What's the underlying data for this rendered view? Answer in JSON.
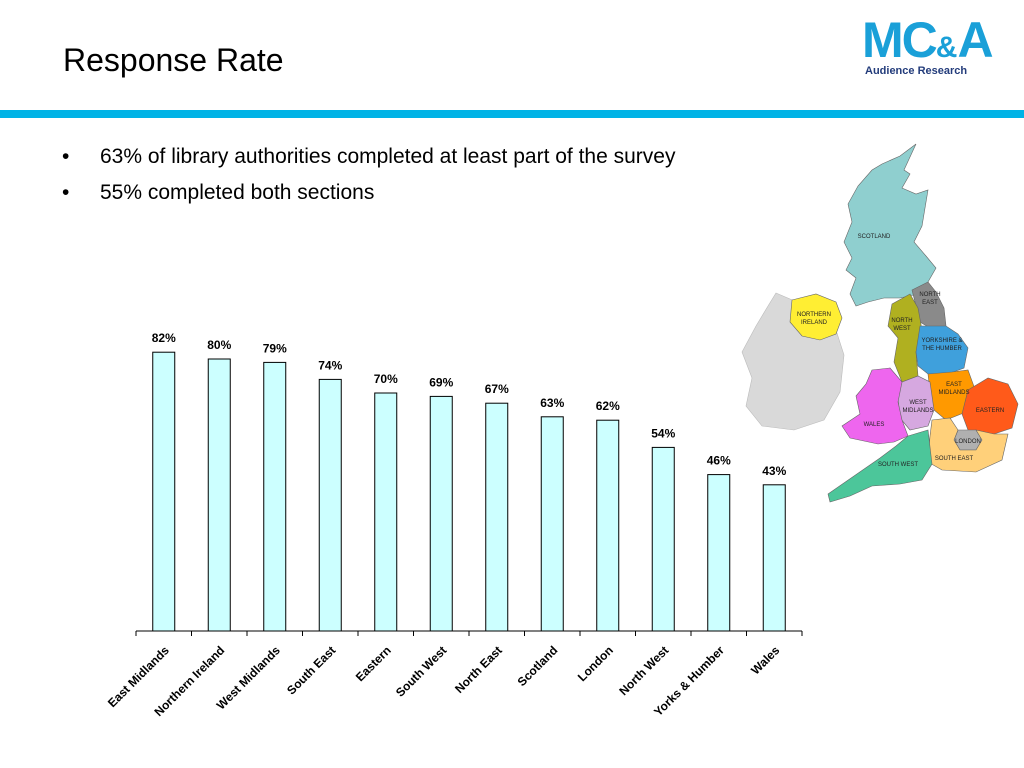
{
  "slide": {
    "title": "Response Rate",
    "bullets": [
      "63% of library authorities completed at least part of the survey",
      "55% completed both sections"
    ]
  },
  "logo": {
    "main": "MC",
    "amp": "&",
    "tail": "A",
    "sub": "Audience Research",
    "color": "#1aa0d8",
    "sub_color": "#233c7b"
  },
  "accent_rule_color": "#00b3e6",
  "map": {
    "labels": {
      "scotland": "SCOTLAND",
      "northern_ireland_1": "NORTHERN",
      "northern_ireland_2": "IRELAND",
      "north_east_1": "NORTH",
      "north_east_2": "EAST",
      "north_west_1": "NORTH",
      "north_west_2": "WEST",
      "yorkshire_1": "YORKSHIRE &",
      "yorkshire_2": "THE HUMBER",
      "east_midlands_1": "EAST",
      "east_midlands_2": "MIDLANDS",
      "west_midlands_1": "WEST",
      "west_midlands_2": "MIDLANDS",
      "eastern": "EASTERN",
      "wales": "WALES",
      "london": "LONDON",
      "south_east": "SOUTH EAST",
      "south_west": "SOUTH WEST"
    },
    "colors": {
      "scotland": "#8fcfcf",
      "ireland": "#d9d9d9",
      "northern_ireland": "#ffee33",
      "north_east": "#8a8a8a",
      "north_west": "#b0b020",
      "yorkshire": "#3fa0dc",
      "east_midlands": "#ff9900",
      "west_midlands": "#d6a8e0",
      "eastern": "#ff5a1a",
      "wales": "#ee66ee",
      "london": "#b0b0b0",
      "south_east": "#ffd07a",
      "south_west": "#4cc69a"
    }
  },
  "chart_data": {
    "type": "bar",
    "categories": [
      "East Midlands",
      "Northern Ireland",
      "West Midlands",
      "South East",
      "Eastern",
      "South West",
      "North East",
      "Scotland",
      "London",
      "North West",
      "Yorks & Humber",
      "Wales"
    ],
    "values": [
      82,
      80,
      79,
      74,
      70,
      69,
      67,
      63,
      62,
      54,
      46,
      43
    ],
    "value_labels": [
      "82%",
      "80%",
      "79%",
      "74%",
      "70%",
      "69%",
      "67%",
      "63%",
      "62%",
      "54%",
      "46%",
      "43%"
    ],
    "ylim": [
      0,
      90
    ],
    "unit": "%",
    "bar_color": "#ccffff",
    "title": "",
    "xlabel": "",
    "ylabel": "",
    "grid": false,
    "legend": false
  }
}
